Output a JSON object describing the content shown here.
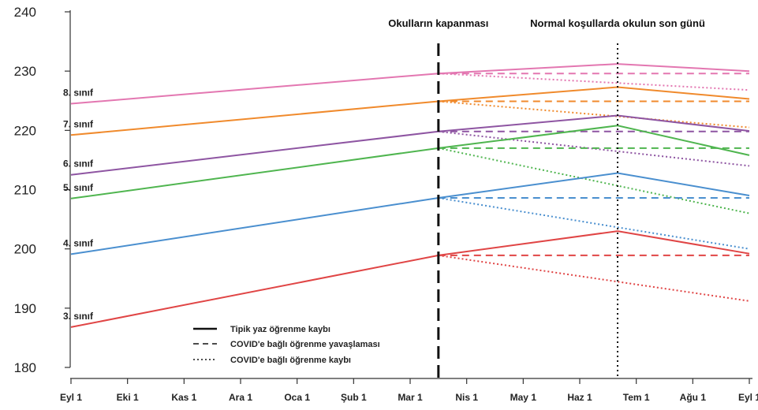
{
  "chart_data": {
    "type": "line",
    "x": [
      "Eyl 1",
      "Eki 1",
      "Kas 1",
      "Ara 1",
      "Oca 1",
      "Şub 1",
      "Mar 1",
      "Nis 1",
      "May 1",
      "Haz 1",
      "Tem 1",
      "Ağu 1",
      "Eyl 1"
    ],
    "ylim": [
      180,
      240
    ],
    "yticks": [
      180,
      190,
      200,
      210,
      220,
      230,
      240
    ],
    "grid": false,
    "annotations": [
      {
        "label": "Okulların kapanması",
        "x": 6.5,
        "style": "dashed"
      },
      {
        "label": "Normal koşullarda okulun son günü",
        "x": 9.67,
        "style": "dotted"
      }
    ],
    "legend": {
      "placement": "bottom-center",
      "entries": [
        {
          "label": "Tipik yaz öğrenme kaybı",
          "style": "solid"
        },
        {
          "label": "COVID'e bağlı öğrenme yavaşlaması",
          "style": "dashed"
        },
        {
          "label": "COVID'e bağlı öğrenme kaybı",
          "style": "dotted"
        }
      ]
    },
    "series": [
      {
        "name": "8. sınıf",
        "color": "#e377b1",
        "typical": [
          [
            0,
            224.5
          ],
          [
            6.5,
            229.6
          ],
          [
            9.67,
            231.2
          ],
          [
            12,
            230.0
          ]
        ],
        "slowdown": [
          [
            6.5,
            229.6
          ],
          [
            12,
            229.6
          ]
        ],
        "loss": [
          [
            6.5,
            229.6
          ],
          [
            12,
            226.8
          ]
        ]
      },
      {
        "name": "7. sınıf",
        "color": "#f08a2c",
        "typical": [
          [
            0,
            219.2
          ],
          [
            6.5,
            224.9
          ],
          [
            9.67,
            227.3
          ],
          [
            12,
            225.3
          ]
        ],
        "slowdown": [
          [
            6.5,
            224.9
          ],
          [
            12,
            224.9
          ]
        ],
        "loss": [
          [
            6.5,
            224.9
          ],
          [
            12,
            220.5
          ]
        ]
      },
      {
        "name": "6. sınıf",
        "color": "#8e55a2",
        "typical": [
          [
            0,
            212.5
          ],
          [
            6.5,
            219.8
          ],
          [
            9.67,
            222.5
          ],
          [
            12,
            219.9
          ]
        ],
        "slowdown": [
          [
            6.5,
            219.8
          ],
          [
            12,
            219.8
          ]
        ],
        "loss": [
          [
            6.5,
            219.8
          ],
          [
            12,
            214.0
          ]
        ]
      },
      {
        "name": "5. sınıf",
        "color": "#4fb54f",
        "typical": [
          [
            0,
            208.5
          ],
          [
            6.5,
            217.0
          ],
          [
            9.67,
            220.8
          ],
          [
            12,
            215.8
          ]
        ],
        "slowdown": [
          [
            6.5,
            217.0
          ],
          [
            12,
            217.0
          ]
        ],
        "loss": [
          [
            6.5,
            217.0
          ],
          [
            12,
            206.0
          ]
        ]
      },
      {
        "name": "4. sınıf",
        "color": "#4a8fcf",
        "typical": [
          [
            0,
            199.1
          ],
          [
            6.5,
            208.6
          ],
          [
            9.67,
            212.8
          ],
          [
            12,
            209.0
          ]
        ],
        "slowdown": [
          [
            6.5,
            208.6
          ],
          [
            12,
            208.6
          ]
        ],
        "loss": [
          [
            6.5,
            208.6
          ],
          [
            12,
            200.0
          ]
        ]
      },
      {
        "name": "3. sınıf",
        "color": "#e04545",
        "typical": [
          [
            0,
            186.8
          ],
          [
            6.5,
            198.9
          ],
          [
            9.67,
            203.0
          ],
          [
            12,
            199.2
          ]
        ],
        "slowdown": [
          [
            6.5,
            198.9
          ],
          [
            12,
            198.9
          ]
        ],
        "loss": [
          [
            6.5,
            198.9
          ],
          [
            12,
            191.2
          ]
        ]
      }
    ]
  }
}
